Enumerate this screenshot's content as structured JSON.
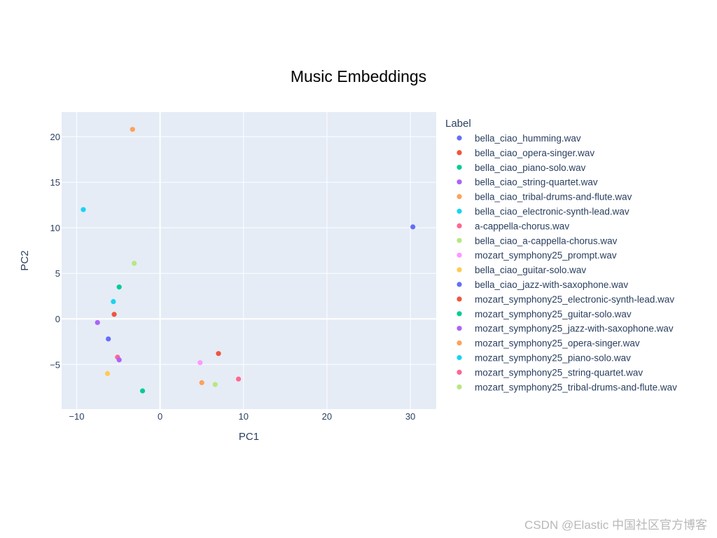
{
  "chart_data": {
    "type": "scatter",
    "title": "Music Embeddings",
    "xlabel": "PC1",
    "ylabel": "PC2",
    "xlim": [
      -11.8,
      33.1
    ],
    "ylim": [
      -9.9,
      22.7
    ],
    "xticks": [
      -10,
      0,
      10,
      20,
      30
    ],
    "yticks": [
      -5,
      0,
      5,
      10,
      15,
      20
    ],
    "xtick_labels": [
      "−10",
      "0",
      "10",
      "20",
      "30"
    ],
    "ytick_labels": [
      "−5",
      "0",
      "5",
      "10",
      "15",
      "20"
    ],
    "grid": true,
    "legend_title": "Label",
    "legend_position": "right",
    "series": [
      {
        "name": "bella_ciao_humming.wav",
        "color": "#636efa",
        "x": [
          30.3
        ],
        "y": [
          10.1
        ]
      },
      {
        "name": "bella_ciao_opera-singer.wav",
        "color": "#ef553b",
        "x": [
          -5.5
        ],
        "y": [
          0.5
        ]
      },
      {
        "name": "bella_ciao_piano-solo.wav",
        "color": "#00cc96",
        "x": [
          -4.9
        ],
        "y": [
          3.5
        ]
      },
      {
        "name": "bella_ciao_string-quartet.wav",
        "color": "#ab63fa",
        "x": [
          -7.5
        ],
        "y": [
          -0.4
        ]
      },
      {
        "name": "bella_ciao_tribal-drums-and-flute.wav",
        "color": "#ffa15a",
        "x": [
          -3.3
        ],
        "y": [
          20.8
        ]
      },
      {
        "name": "bella_ciao_electronic-synth-lead.wav",
        "color": "#19d3f3",
        "x": [
          -9.2
        ],
        "y": [
          12.0
        ]
      },
      {
        "name": "a-cappella-chorus.wav",
        "color": "#ff6692",
        "x": [
          -5.1
        ],
        "y": [
          -4.2
        ]
      },
      {
        "name": "bella_ciao_a-cappella-chorus.wav",
        "color": "#b6e880",
        "x": [
          -3.1
        ],
        "y": [
          6.1
        ]
      },
      {
        "name": "mozart_symphony25_prompt.wav",
        "color": "#ff97ff",
        "x": [
          4.8
        ],
        "y": [
          -4.8
        ]
      },
      {
        "name": "bella_ciao_guitar-solo.wav",
        "color": "#fecb52",
        "x": [
          -6.3
        ],
        "y": [
          -6.0
        ]
      },
      {
        "name": "bella_ciao_jazz-with-saxophone.wav",
        "color": "#636efa",
        "x": [
          -6.2
        ],
        "y": [
          -2.2
        ]
      },
      {
        "name": "mozart_symphony25_electronic-synth-lead.wav",
        "color": "#ef553b",
        "x": [
          7.0
        ],
        "y": [
          -3.8
        ]
      },
      {
        "name": "mozart_symphony25_guitar-solo.wav",
        "color": "#00cc96",
        "x": [
          -2.1
        ],
        "y": [
          -7.9
        ]
      },
      {
        "name": "mozart_symphony25_jazz-with-saxophone.wav",
        "color": "#ab63fa",
        "x": [
          -4.9
        ],
        "y": [
          -4.5
        ]
      },
      {
        "name": "mozart_symphony25_opera-singer.wav",
        "color": "#ffa15a",
        "x": [
          5.0
        ],
        "y": [
          -7.0
        ]
      },
      {
        "name": "mozart_symphony25_piano-solo.wav",
        "color": "#19d3f3",
        "x": [
          -5.6
        ],
        "y": [
          1.9
        ]
      },
      {
        "name": "mozart_symphony25_string-quartet.wav",
        "color": "#ff6692",
        "x": [
          9.4
        ],
        "y": [
          -6.6
        ]
      },
      {
        "name": "mozart_symphony25_tribal-drums-and-flute.wav",
        "color": "#b6e880",
        "x": [
          6.6
        ],
        "y": [
          -7.2
        ]
      }
    ]
  },
  "watermark": "CSDN @Elastic 中国社区官方博客"
}
